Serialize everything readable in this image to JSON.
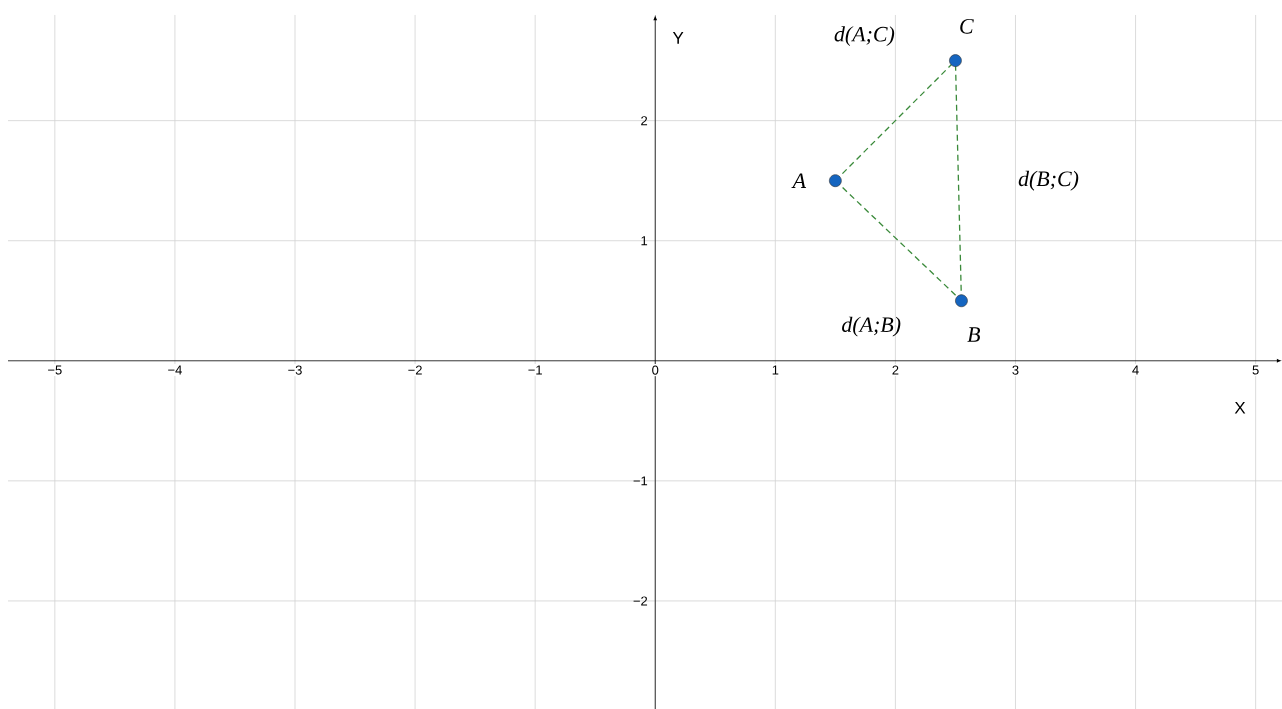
{
  "chart_data": {
    "type": "scatter",
    "xlabel": "X",
    "ylabel": "Y",
    "grid": true,
    "xlim": [
      -5.39,
      5.22
    ],
    "ylim": [
      -2.9,
      2.88
    ],
    "xticks": [
      {
        "value": -5,
        "label": "−5"
      },
      {
        "value": -4,
        "label": "−4"
      },
      {
        "value": -3,
        "label": "−3"
      },
      {
        "value": -2,
        "label": "−2"
      },
      {
        "value": -1,
        "label": "−1"
      },
      0,
      1,
      2,
      3,
      4,
      5
    ],
    "yticks": [
      {
        "value": -2,
        "label": "−2"
      },
      {
        "value": -1,
        "label": "−1"
      },
      1,
      2
    ],
    "series": [
      {
        "type": "line",
        "name": "d(A;C)",
        "color": "#3a8a3a",
        "line_style": "dashed",
        "marker": "none",
        "x": [
          1.5,
          2.5
        ],
        "values": [
          1.5,
          2.5
        ]
      },
      {
        "type": "line",
        "name": "d(B;C)",
        "color": "#3a8a3a",
        "line_style": "dashed",
        "marker": "none",
        "x": [
          2.55,
          2.5
        ],
        "values": [
          0.5,
          2.5
        ]
      },
      {
        "type": "line",
        "name": "d(A;B)",
        "color": "#3a8a3a",
        "line_style": "dashed",
        "marker": "none",
        "x": [
          1.5,
          2.55
        ],
        "values": [
          1.5,
          0.5
        ]
      },
      {
        "name": "A",
        "color": "#1565c0",
        "marker": "circle",
        "x": [
          1.5
        ],
        "values": [
          1.5
        ]
      },
      {
        "name": "B",
        "color": "#1565c0",
        "marker": "circle",
        "x": [
          2.55
        ],
        "values": [
          0.5
        ]
      },
      {
        "name": "C",
        "color": "#1565c0",
        "marker": "circle",
        "x": [
          2.5
        ],
        "values": [
          2.5
        ]
      }
    ]
  }
}
